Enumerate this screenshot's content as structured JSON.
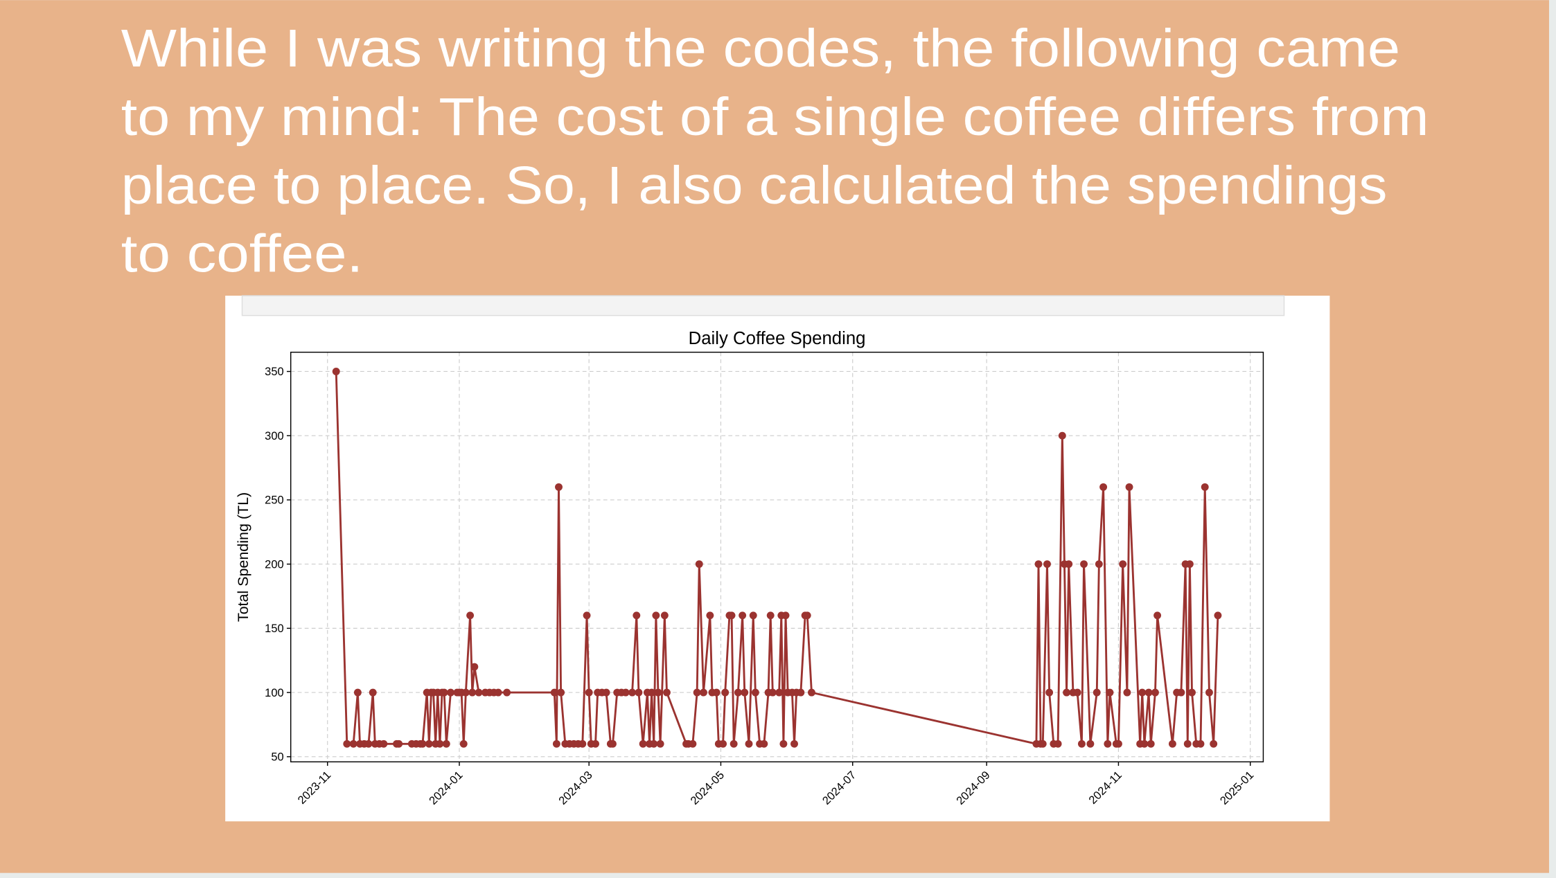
{
  "slide": {
    "lines": [
      "While I was writing the codes, the following came",
      "to my mind: The cost of a single coffee differs from",
      "place to place. So, I also calculated the spendings",
      "to coffee."
    ]
  },
  "chart_data": {
    "type": "line",
    "title": "Daily Coffee Spending",
    "y_label": "Total Spending (TL)",
    "x": [
      4,
      9,
      12,
      14,
      15,
      17,
      19,
      21,
      22,
      24,
      26,
      32,
      33,
      39,
      41,
      43,
      44,
      46,
      47,
      48,
      49,
      50,
      51,
      52,
      53,
      54,
      55,
      57,
      60,
      61,
      62,
      63,
      64,
      66,
      67,
      68,
      70,
      73,
      75,
      77,
      79,
      83,
      105,
      106,
      107,
      108,
      110,
      112,
      114,
      116,
      118,
      120,
      121,
      122,
      124,
      125,
      127,
      129,
      131,
      132,
      134,
      136,
      138,
      141,
      143,
      144,
      146,
      148,
      149,
      150,
      151,
      152,
      153,
      154,
      156,
      157,
      166,
      167,
      169,
      171,
      172,
      174,
      177,
      178,
      180,
      181,
      183,
      184,
      186,
      187,
      188,
      190,
      192,
      193,
      195,
      197,
      198,
      200,
      202,
      204,
      205,
      206,
      209,
      210,
      211,
      212,
      213,
      215,
      216,
      217,
      219,
      221,
      222,
      224,
      328,
      329,
      330,
      331,
      333,
      334,
      336,
      338,
      340,
      341,
      342,
      343,
      345,
      347,
      349,
      350,
      353,
      356,
      357,
      359,
      361,
      362,
      365,
      366,
      368,
      370,
      371,
      376,
      377,
      378,
      380,
      381,
      383,
      384,
      391,
      393,
      395,
      397,
      398,
      399,
      400,
      402,
      404,
      406,
      408,
      410,
      412
    ],
    "series": [
      {
        "name": "Total Spending",
        "color": "#9b3330",
        "values": [
          350,
          60,
          60,
          100,
          60,
          60,
          60,
          100,
          60,
          60,
          60,
          60,
          60,
          60,
          60,
          60,
          60,
          100,
          60,
          100,
          100,
          60,
          100,
          60,
          100,
          100,
          60,
          100,
          100,
          100,
          100,
          60,
          100,
          160,
          100,
          120,
          100,
          100,
          100,
          100,
          100,
          100,
          100,
          60,
          260,
          100,
          60,
          60,
          60,
          60,
          60,
          160,
          100,
          60,
          60,
          100,
          100,
          100,
          60,
          60,
          100,
          100,
          100,
          100,
          160,
          100,
          60,
          100,
          60,
          100,
          60,
          160,
          100,
          60,
          160,
          100,
          60,
          60,
          60,
          100,
          200,
          100,
          160,
          100,
          100,
          60,
          60,
          100,
          160,
          160,
          60,
          100,
          160,
          100,
          60,
          160,
          100,
          60,
          60,
          100,
          160,
          100,
          100,
          160,
          60,
          160,
          100,
          100,
          60,
          100,
          100,
          160,
          160,
          100,
          60,
          200,
          60,
          60,
          200,
          100,
          60,
          60,
          300,
          200,
          100,
          200,
          100,
          100,
          60,
          200,
          60,
          100,
          200,
          260,
          60,
          100,
          60,
          60,
          200,
          100,
          260,
          60,
          100,
          60,
          100,
          60,
          100,
          160,
          60,
          100,
          100,
          200,
          60,
          200,
          100,
          60,
          60,
          260,
          100,
          60,
          160
        ]
      }
    ],
    "xlim": [
      -17,
      433
    ],
    "xticks": [
      {
        "value": 0,
        "label": "2023-11"
      },
      {
        "value": 61,
        "label": "2024-01"
      },
      {
        "value": 121,
        "label": "2024-03"
      },
      {
        "value": 182,
        "label": "2024-05"
      },
      {
        "value": 243,
        "label": "2024-07"
      },
      {
        "value": 305,
        "label": "2024-09"
      },
      {
        "value": 366,
        "label": "2024-11"
      },
      {
        "value": 427,
        "label": "2025-01"
      }
    ],
    "ylim": [
      46,
      365
    ],
    "yticks": [
      50,
      100,
      150,
      200,
      250,
      300,
      350
    ],
    "grid": true
  }
}
